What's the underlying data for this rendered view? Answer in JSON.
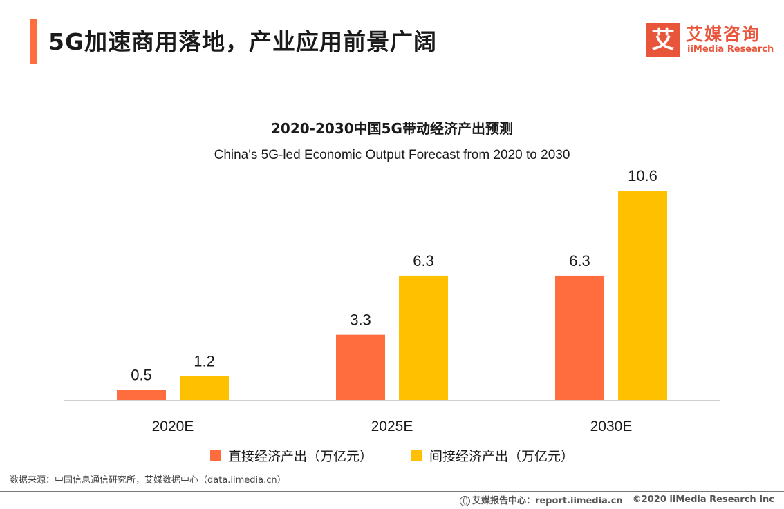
{
  "header": {
    "title": "5G加速商用落地，产业应用前景广阔"
  },
  "logo": {
    "mark": "艾",
    "name_cn": "艾媒咨询",
    "name_en": "iiMedia Research"
  },
  "colors": {
    "accent": "#ff6d3f",
    "direct": "#ff6d3f",
    "indirect": "#ffc000"
  },
  "chart_data": {
    "type": "bar",
    "title": "2020-2030中国5G带动经济产出预测",
    "subtitle": "China's 5G-led Economic Output Forecast from 2020 to 2030",
    "categories": [
      "2020E",
      "2025E",
      "2030E"
    ],
    "series": [
      {
        "name": "直接经济产出（万亿元）",
        "values": [
          0.5,
          3.3,
          6.3
        ],
        "labels": [
          "0.5",
          "3.3",
          "6.3"
        ]
      },
      {
        "name": "间接经济产出（万亿元）",
        "values": [
          1.2,
          6.3,
          10.6
        ],
        "labels": [
          "1.2",
          "6.3",
          "10.6"
        ]
      }
    ],
    "ylim": [
      0,
      10.6
    ],
    "grid": false,
    "legend": "bottom"
  },
  "source": {
    "text": "数据来源：中国信息通信研究所，艾媒数据中心（data.iimedia.cn）"
  },
  "footer": {
    "site": "艾媒报告中心：report.iimedia.cn",
    "copyright": "©2020  iiMedia Research  Inc"
  }
}
